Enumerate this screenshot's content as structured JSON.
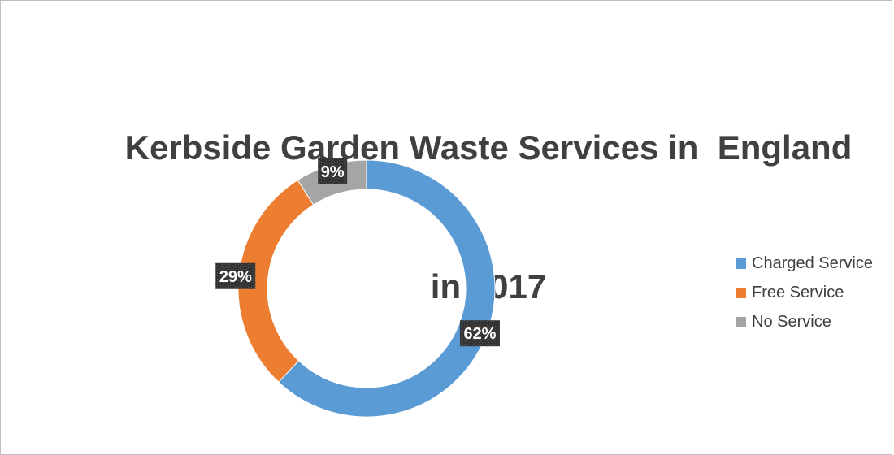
{
  "chart_data": {
    "type": "pie",
    "variant": "doughnut",
    "title": "Kerbside Garden Waste Services in  England in 2017",
    "title_lines": [
      "Kerbside Garden Waste Services in  England",
      "in 2017"
    ],
    "categories": [
      "Charged Service",
      "Free Service",
      "No Service"
    ],
    "values": [
      62,
      29,
      9
    ],
    "labels": [
      "62%",
      "29%",
      "9%"
    ],
    "colors": [
      "#5b9bd5",
      "#ed7d31",
      "#a5a5a5"
    ],
    "label_style": "dark-box-white-text",
    "legend": "right"
  }
}
